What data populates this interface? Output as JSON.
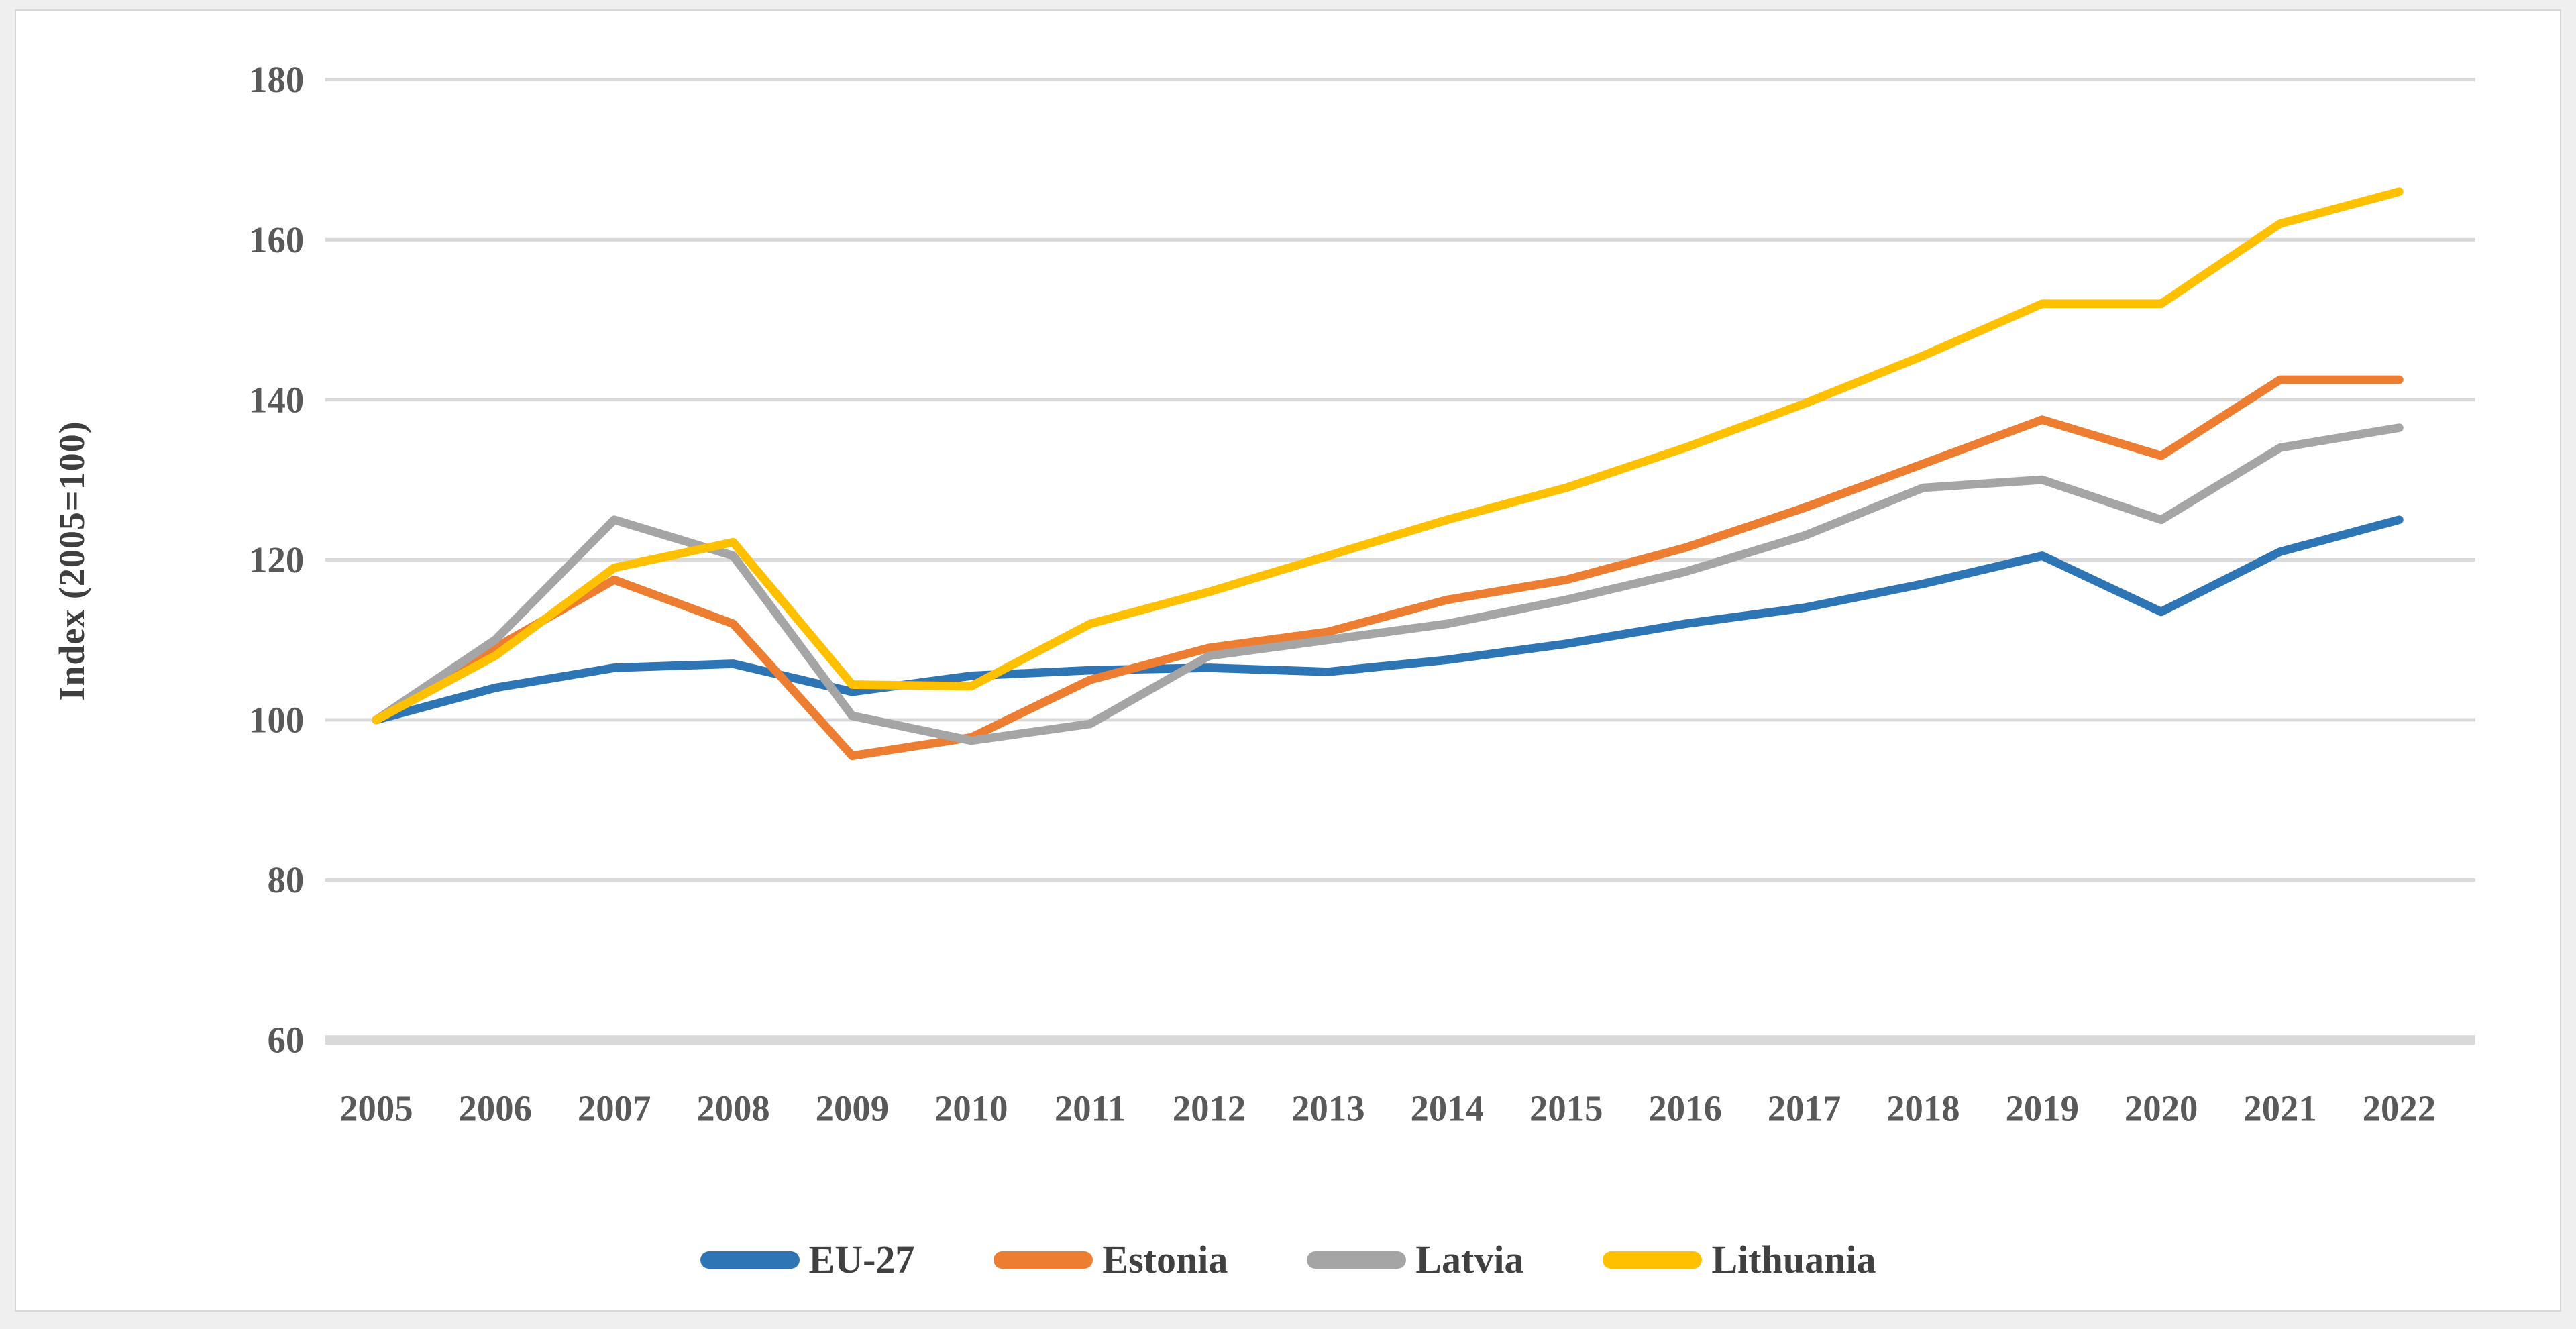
{
  "chart_data": {
    "type": "line",
    "title": "",
    "xlabel": "",
    "ylabel": "Index (2005=100)",
    "ylim": [
      60,
      180
    ],
    "ytick_step": 20,
    "grid": "horizontal",
    "legend_position": "bottom",
    "x": [
      "2005",
      "2006",
      "2007",
      "2008",
      "2009",
      "2010",
      "2011",
      "2012",
      "2013",
      "2014",
      "2015",
      "2016",
      "2017",
      "2018",
      "2019",
      "2020",
      "2021",
      "2022"
    ],
    "yticks": [
      "60",
      "80",
      "100",
      "120",
      "140",
      "160",
      "180"
    ],
    "series": [
      {
        "name": "EU-27",
        "color": "#2E75B6",
        "values": [
          100,
          104,
          106.5,
          107,
          103.5,
          105.5,
          106.2,
          106.5,
          106,
          107.5,
          109.5,
          112,
          114,
          117,
          120.5,
          113.5,
          121,
          125
        ]
      },
      {
        "name": "Estonia",
        "color": "#ED7D31",
        "values": [
          100,
          109,
          117.5,
          112,
          95.5,
          97.8,
          105,
          109,
          111,
          115,
          117.5,
          121.5,
          126.5,
          132,
          137.5,
          133,
          142.5,
          142.5
        ]
      },
      {
        "name": "Latvia",
        "color": "#A5A5A5",
        "values": [
          100,
          110,
          125,
          120.5,
          100.5,
          97.4,
          99.5,
          108,
          110,
          112,
          115,
          118.5,
          123,
          129,
          130,
          125,
          134,
          136.5
        ]
      },
      {
        "name": "Lithuania",
        "color": "#FFC000",
        "values": [
          100,
          108,
          119,
          122.2,
          104.4,
          104.2,
          112,
          116,
          120.5,
          125,
          129,
          134,
          139.5,
          145.5,
          152,
          152,
          162,
          166
        ]
      }
    ],
    "style": {
      "gridline_color": "#D9D9D9",
      "axis_line_color": "#D9D9D9",
      "tick_label_color": "#595959",
      "background": "#FFFFFF"
    }
  }
}
